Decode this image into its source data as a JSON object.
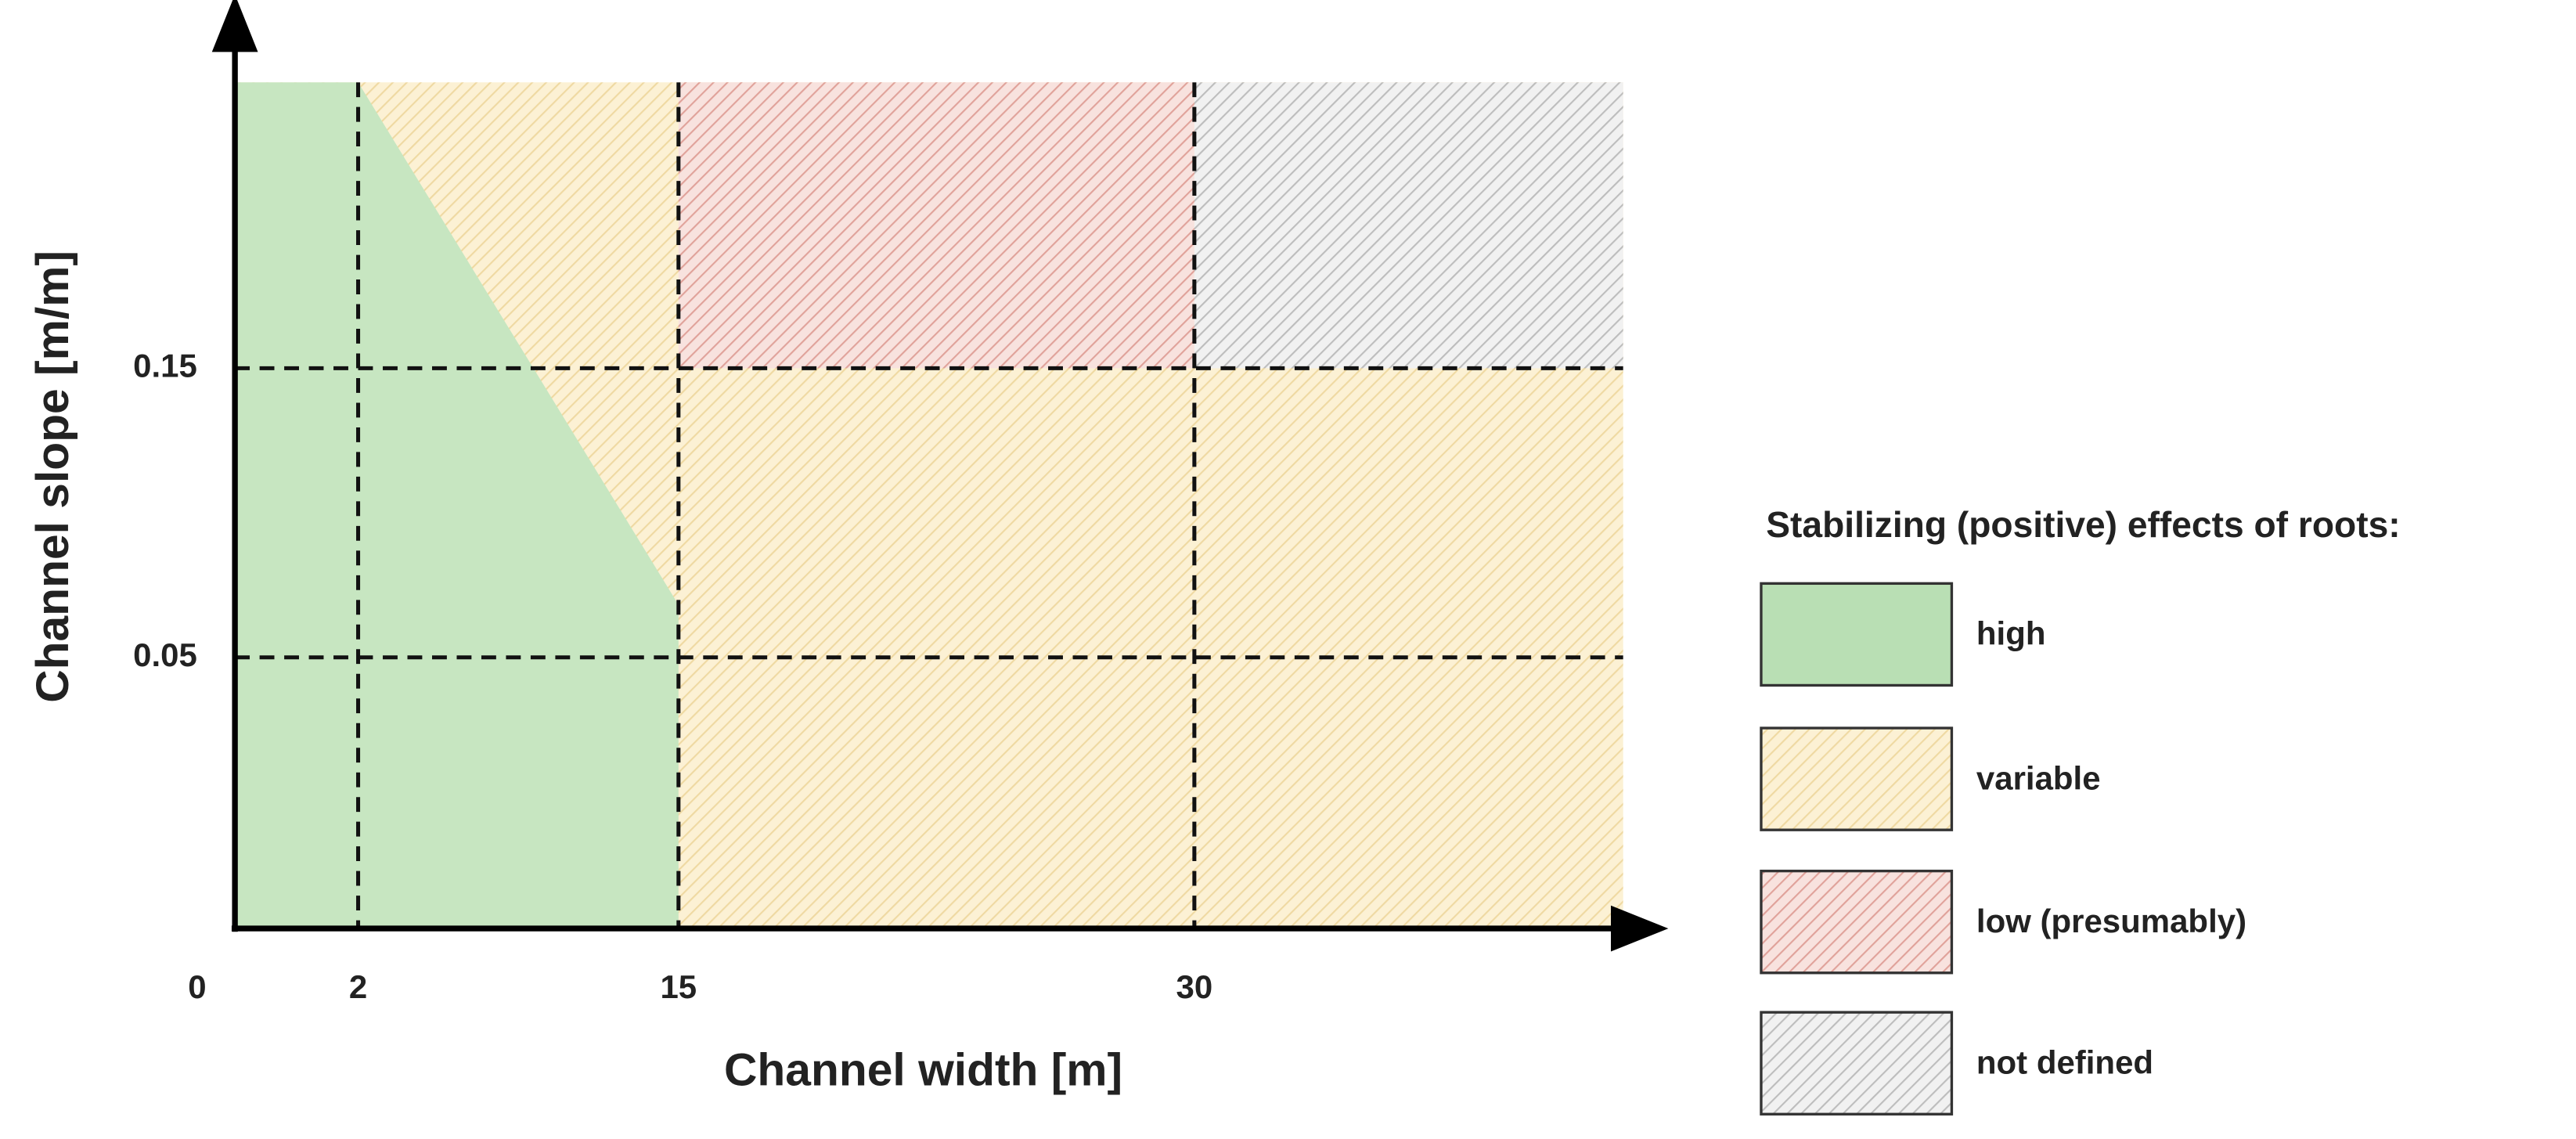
{
  "y_axis": {
    "title": "Channel slope [m/m]",
    "ticks": [
      "0.15",
      "0.05"
    ]
  },
  "x_axis": {
    "title": "Channel width [m]",
    "ticks": [
      "0",
      "2",
      "15",
      "30"
    ]
  },
  "legend": {
    "title": "Stabilizing (positive) effects of roots:",
    "items": [
      "high",
      "variable",
      "low (presumably)",
      "not defined"
    ]
  }
}
